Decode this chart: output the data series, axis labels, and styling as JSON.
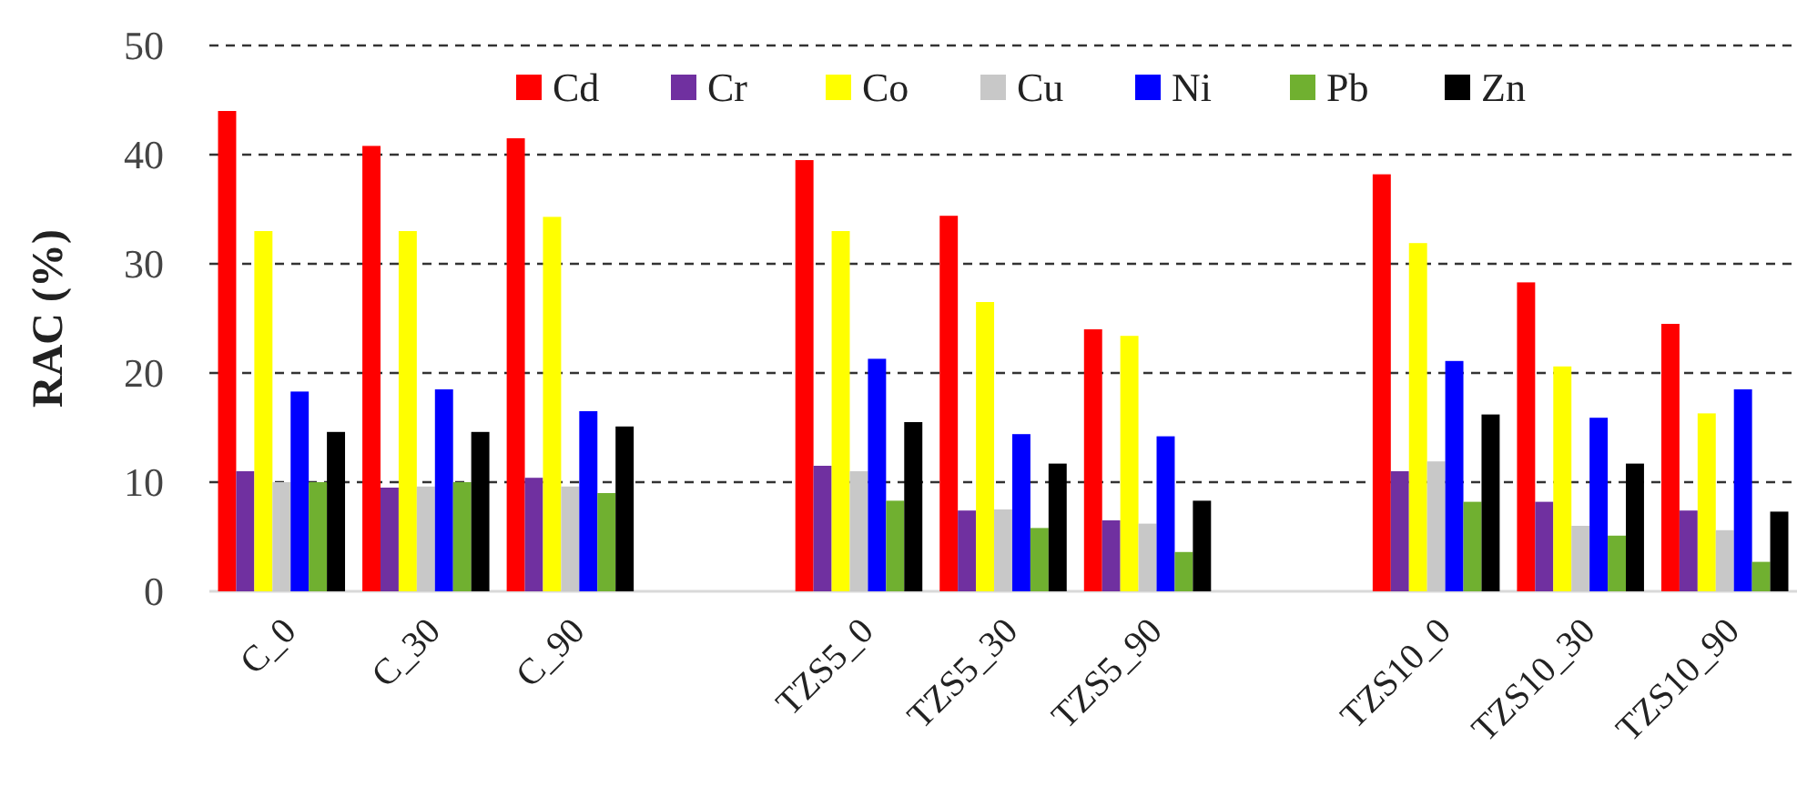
{
  "chart_data": {
    "type": "bar",
    "ylabel": "RAC (%)",
    "categories": [
      "C_0",
      "C_30",
      "C_90",
      null,
      "TZS5_0",
      "TZS5_30",
      "TZS5_90",
      null,
      "TZS10_0",
      "TZS10_30",
      "TZS10_90"
    ],
    "series": [
      {
        "name": "Cd",
        "color": "#ff0000",
        "values": [
          44,
          40.8,
          41.5,
          null,
          39.5,
          34.4,
          24,
          null,
          38.2,
          28.3,
          24.5
        ]
      },
      {
        "name": "Cr",
        "color": "#7030a0",
        "values": [
          11,
          9.5,
          10.4,
          null,
          11.5,
          7.4,
          6.5,
          null,
          11,
          8.2,
          7.4
        ]
      },
      {
        "name": "Co",
        "color": "#ffff00",
        "values": [
          33,
          33,
          34.3,
          null,
          33,
          26.5,
          23.4,
          null,
          31.9,
          20.6,
          16.3
        ]
      },
      {
        "name": "Cu",
        "color": "#c8c8c8",
        "values": [
          10,
          9.6,
          9.6,
          null,
          11,
          7.5,
          6.2,
          null,
          11.9,
          6,
          5.6
        ]
      },
      {
        "name": "Ni",
        "color": "#0000ff",
        "values": [
          18.3,
          18.5,
          16.5,
          null,
          21.3,
          14.4,
          14.2,
          null,
          21.1,
          15.9,
          18.5
        ]
      },
      {
        "name": "Pb",
        "color": "#70b030",
        "values": [
          10,
          10,
          9,
          null,
          8.3,
          5.8,
          3.6,
          null,
          8.2,
          5.1,
          2.7
        ]
      },
      {
        "name": "Zn",
        "color": "#000000",
        "values": [
          14.6,
          14.6,
          15.1,
          null,
          15.5,
          11.7,
          8.3,
          null,
          16.2,
          11.7,
          7.3
        ]
      }
    ],
    "ylim": [
      0,
      50
    ],
    "yticks": [
      0,
      10,
      20,
      30,
      40,
      50
    ],
    "grid": "y",
    "legend": "top"
  }
}
